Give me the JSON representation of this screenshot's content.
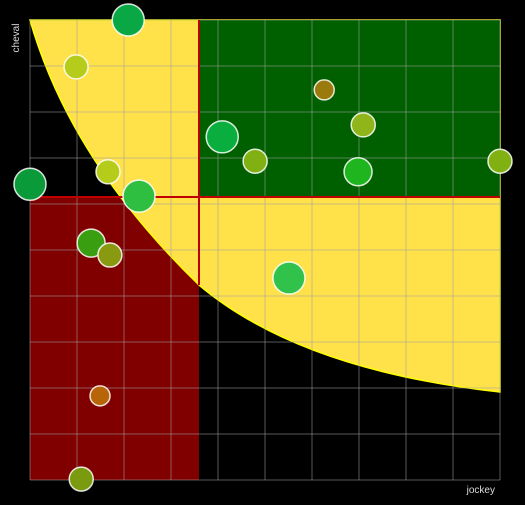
{
  "chart_data": {
    "type": "bubble",
    "xlabel": "jockey",
    "ylabel": "cheval",
    "x": [
      2.09,
      0.98,
      6.26,
      7.09,
      4.09,
      4.79,
      6.98,
      10.0,
      0.0,
      1.66,
      2.32,
      1.3,
      1.7,
      5.51,
      1.49,
      1.09
    ],
    "values": [
      10.0,
      8.98,
      8.48,
      7.72,
      7.46,
      6.93,
      6.7,
      6.93,
      6.43,
      6.7,
      6.17,
      5.15,
      4.89,
      4.39,
      1.83,
      0.02
    ],
    "sizes": [
      16,
      12,
      10,
      12,
      16,
      12,
      14,
      12,
      16,
      12,
      16,
      14,
      12,
      16,
      10,
      12
    ],
    "colors": [
      "#0aa845",
      "#b5cc1a",
      "#9a7a0a",
      "#8fb51a",
      "#0aae3e",
      "#80b012",
      "#1eb51e",
      "#80b012",
      "#0a9a3a",
      "#b5cc1a",
      "#2ebf40",
      "#3a9f10",
      "#8a9a10",
      "#30c24a",
      "#b8650a",
      "#7a9a10"
    ],
    "xlim": [
      0,
      10
    ],
    "ylim": [
      0,
      10
    ],
    "xticks": [
      0,
      1,
      2,
      3,
      4,
      5,
      6,
      7,
      8,
      9,
      10
    ],
    "yticks": [
      0,
      1,
      2,
      3,
      4,
      5,
      6,
      7,
      8,
      9,
      10
    ],
    "grid": true
  }
}
